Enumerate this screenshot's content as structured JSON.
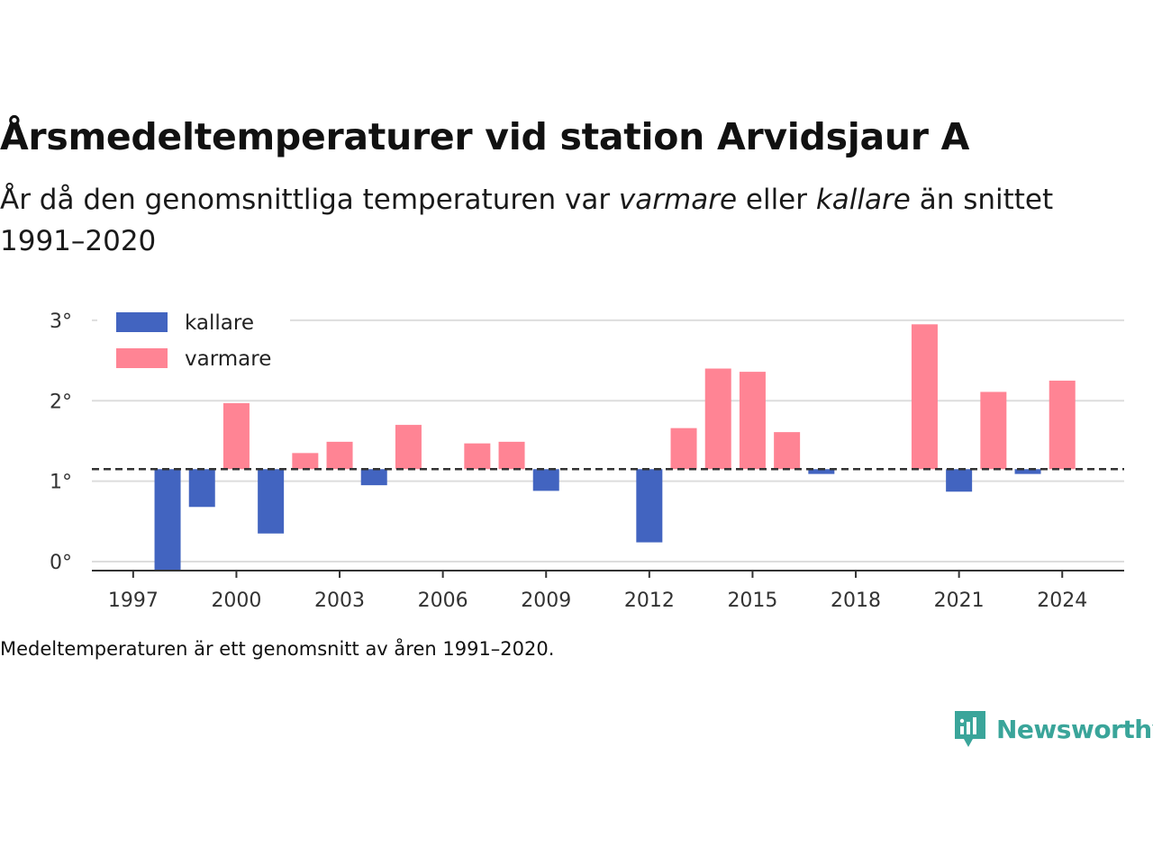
{
  "header": {
    "title": "Årsmedeltemperaturer vid station Arvidsjaur A",
    "subtitle_part1": "År då den genomsnittliga temperaturen var ",
    "subtitle_em1": "varmare",
    "subtitle_part2": " eller ",
    "subtitle_em2": "kallare",
    "subtitle_part3": " än snittet 1991–2020"
  },
  "footnote": "Medeltemperaturen är ett genomsnitt av åren 1991–2020.",
  "brand": {
    "name": "Newsworthy",
    "icon": "newsworthy-logo-icon",
    "color": "#3aa59a"
  },
  "chart_data": {
    "type": "bar",
    "baseline": 1.15,
    "ylim": [
      -0.1,
      3.2
    ],
    "xlim": [
      1995.8,
      2025.8
    ],
    "yticks": [
      0,
      1,
      2,
      3
    ],
    "ytick_labels": [
      "0°",
      "1°",
      "2°",
      "3°"
    ],
    "xticks": [
      1997,
      2000,
      2003,
      2006,
      2009,
      2012,
      2015,
      2018,
      2021,
      2024
    ],
    "xtick_labels": [
      "1997",
      "2000",
      "2003",
      "2006",
      "2009",
      "2012",
      "2015",
      "2018",
      "2021",
      "2024"
    ],
    "colors": {
      "kallare": "#4264c0",
      "varmare": "#ff8494"
    },
    "legend": {
      "position": "top-left",
      "entries": [
        {
          "key": "kallare",
          "label": "kallare"
        },
        {
          "key": "varmare",
          "label": "varmare"
        }
      ]
    },
    "series": [
      {
        "name": "kallare",
        "x": [
          1998,
          1999,
          2001,
          2004,
          2009,
          2012,
          2017,
          2021,
          2023
        ],
        "values": [
          -0.12,
          0.68,
          0.35,
          0.95,
          0.88,
          0.24,
          1.09,
          0.87,
          1.09
        ]
      },
      {
        "name": "varmare",
        "x": [
          2000,
          2002,
          2003,
          2005,
          2007,
          2008,
          2013,
          2014,
          2015,
          2016,
          2020,
          2022,
          2024
        ],
        "values": [
          1.97,
          1.35,
          1.49,
          1.7,
          1.47,
          1.49,
          1.66,
          2.4,
          2.36,
          1.61,
          2.95,
          2.11,
          2.25
        ]
      }
    ]
  }
}
